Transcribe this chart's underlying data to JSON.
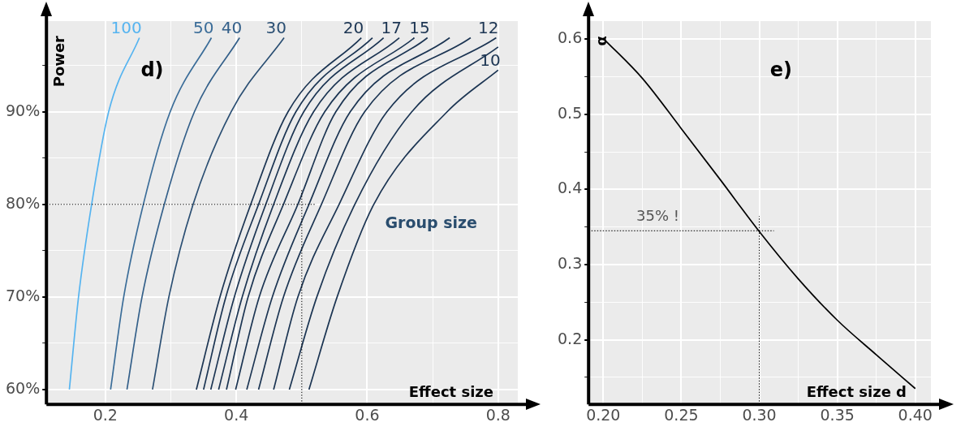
{
  "chart_data": [
    {
      "type": "line",
      "title": "d)",
      "xlabel": "Effect size",
      "ylabel": "Power",
      "xlim": [
        0.11,
        0.83
      ],
      "ylim": [
        58.4,
        99.8
      ],
      "xticks": [
        0.2,
        {
          "value": 0.3,
          "label": null
        },
        0.4,
        {
          "value": 0.5,
          "label": null
        },
        0.6,
        {
          "value": 0.7,
          "label": null
        },
        0.8
      ],
      "yticks": [
        {
          "value": 60,
          "label": "60%"
        },
        {
          "value": 65,
          "label": null
        },
        {
          "value": 70,
          "label": "70%"
        },
        {
          "value": 75,
          "label": null
        },
        {
          "value": 80,
          "label": "80%"
        },
        {
          "value": 85,
          "label": null
        },
        {
          "value": 90,
          "label": "90%"
        },
        {
          "value": 95,
          "label": null
        }
      ],
      "grid": true,
      "legend": false,
      "annotations": [
        "Group size"
      ],
      "ref_lines": [
        {
          "axis": "y",
          "value": 80,
          "color": "#000000",
          "line_style": "dotted"
        },
        {
          "axis": "x",
          "value": 0.5,
          "color": "#000000",
          "line_style": "dotted"
        }
      ],
      "series": [
        {
          "name": "100",
          "color": "#56b4f0",
          "x": [
            0.145,
            0.159,
            0.179,
            0.205,
            0.252
          ],
          "values": [
            60,
            70,
            80,
            90,
            98
          ]
        },
        {
          "name": "50",
          "color": "#3b6d99",
          "x": [
            0.208,
            0.228,
            0.258,
            0.299,
            0.362
          ],
          "values": [
            60,
            70,
            80,
            90,
            98
          ]
        },
        {
          "name": "40",
          "color": "#34608a",
          "x": [
            0.233,
            0.256,
            0.29,
            0.336,
            0.405
          ],
          "values": [
            60,
            70,
            80,
            90,
            98
          ]
        },
        {
          "name": "30",
          "color": "#2b4f73",
          "x": [
            0.272,
            0.297,
            0.334,
            0.392,
            0.473
          ],
          "values": [
            60,
            70,
            80,
            90,
            98
          ]
        },
        {
          "name": "20",
          "color": "#1c3553",
          "x": [
            0.339,
            0.375,
            0.422,
            0.479,
            0.591
          ],
          "values": [
            60,
            70,
            80,
            90,
            98
          ]
        },
        {
          "color": "#1c3553",
          "x": [
            0.35,
            0.384,
            0.434,
            0.491,
            0.608
          ],
          "values": [
            60,
            70,
            80,
            90,
            98
          ]
        },
        {
          "color": "#1c3553",
          "x": [
            0.361,
            0.397,
            0.445,
            0.503,
            0.625
          ],
          "values": [
            60,
            70,
            80,
            90,
            98
          ]
        },
        {
          "name": "17",
          "color": "#1c3553",
          "x": [
            0.373,
            0.409,
            0.457,
            0.518,
            0.649
          ],
          "values": [
            60,
            70,
            80,
            90,
            98
          ]
        },
        {
          "color": "#1c3553",
          "x": [
            0.385,
            0.418,
            0.472,
            0.535,
            0.672
          ],
          "values": [
            60,
            70,
            80,
            90,
            98
          ]
        },
        {
          "name": "15",
          "color": "#1c3553",
          "x": [
            0.399,
            0.435,
            0.494,
            0.552,
            0.692
          ],
          "values": [
            60,
            70,
            80,
            90,
            98
          ]
        },
        {
          "color": "#1c3553",
          "x": [
            0.416,
            0.455,
            0.511,
            0.574,
            0.726
          ],
          "values": [
            60,
            70,
            80,
            90,
            98
          ]
        },
        {
          "color": "#1c3553",
          "x": [
            0.434,
            0.472,
            0.53,
            0.596,
            0.758
          ],
          "values": [
            60,
            70,
            80,
            90,
            98
          ]
        },
        {
          "name": "12",
          "color": "#1c3553",
          "x": [
            0.457,
            0.494,
            0.557,
            0.63,
            0.797
          ],
          "values": [
            60,
            70,
            80,
            90,
            98
          ]
        },
        {
          "color": "#1c3553",
          "x": [
            0.481,
            0.523,
            0.581,
            0.668,
            0.8
          ],
          "values": [
            60,
            70,
            80,
            90,
            97
          ]
        },
        {
          "name": "10",
          "color": "#1c3553",
          "x": [
            0.511,
            0.554,
            0.61,
            0.722,
            0.8
          ],
          "values": [
            60,
            70,
            80,
            90,
            94.5
          ]
        }
      ]
    },
    {
      "type": "line",
      "title": "e)",
      "xlabel": "Effect size d",
      "ylabel": "α",
      "xlim": [
        0.1906,
        0.41
      ],
      "ylim": [
        0.114,
        0.624
      ],
      "xticks": [
        {
          "value": 0.2,
          "label": "0.20"
        },
        {
          "value": 0.225,
          "label": null
        },
        {
          "value": 0.25,
          "label": "0.25"
        },
        {
          "value": 0.275,
          "label": null
        },
        {
          "value": 0.3,
          "label": "0.30"
        },
        {
          "value": 0.325,
          "label": null
        },
        {
          "value": 0.35,
          "label": "0.35"
        },
        {
          "value": 0.375,
          "label": null
        },
        {
          "value": 0.4,
          "label": "0.40"
        }
      ],
      "yticks": [
        {
          "value": 0.15,
          "label": null
        },
        0.2,
        {
          "value": 0.25,
          "label": null
        },
        0.3,
        {
          "value": 0.35,
          "label": null
        },
        0.4,
        {
          "value": 0.45,
          "label": null
        },
        0.5,
        {
          "value": 0.55,
          "label": null
        },
        0.6
      ],
      "grid": true,
      "legend": false,
      "annotations": [
        {
          "text": "35% !",
          "x": 0.235,
          "y": 0.345
        }
      ],
      "ref_lines": [
        {
          "axis": "y",
          "value": 0.345,
          "color": "#000000",
          "line_style": "dotted"
        },
        {
          "axis": "x",
          "value": 0.3,
          "color": "#000000",
          "line_style": "dotted"
        }
      ],
      "series": [
        {
          "color": "#000000",
          "x": [
            0.2,
            0.225,
            0.25,
            0.275,
            0.3,
            0.325,
            0.35,
            0.375,
            0.4
          ],
          "values": [
            0.601,
            0.548,
            0.481,
            0.413,
            0.344,
            0.281,
            0.226,
            0.18,
            0.135
          ]
        }
      ]
    }
  ]
}
